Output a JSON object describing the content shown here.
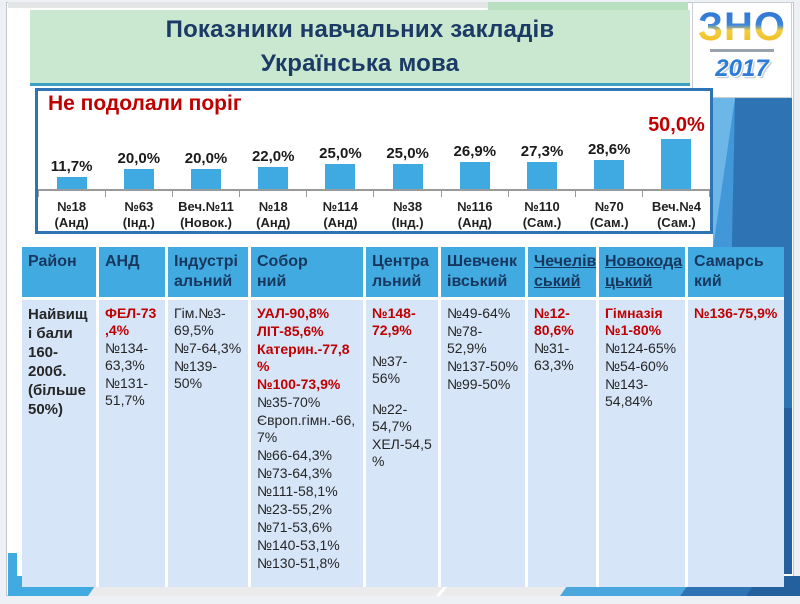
{
  "page": {
    "title_line1": "Показники навчальних закладів",
    "title_line2": "Українська мова",
    "logo_text": "ЗНО",
    "logo_year": "2017"
  },
  "chart_data": {
    "type": "bar",
    "title": "Не подолали поріг",
    "xlabel": "",
    "ylabel": "",
    "ylim": [
      0,
      55
    ],
    "grid": false,
    "legend": false,
    "bar_color": "#3FA9E1",
    "categories": [
      "№18 (Анд)",
      "№63 (Інд.)",
      "Веч.№11 (Новок.)",
      "№18 (Анд)",
      "№114 (Анд)",
      "№38 (Інд.)",
      "№116 (Анд)",
      "№110 (Сам.)",
      "№70 (Сам.)",
      "Веч.№4 (Сам.)"
    ],
    "category_lines": [
      [
        "№18",
        "(Анд)"
      ],
      [
        "№63",
        "(Інд.)"
      ],
      [
        "Веч.№11",
        "(Новок.)"
      ],
      [
        "№18",
        "(Анд)"
      ],
      [
        "№114",
        "(Анд)"
      ],
      [
        "№38",
        "(Інд.)"
      ],
      [
        "№116",
        "(Анд)"
      ],
      [
        "№110",
        "(Сам.)"
      ],
      [
        "№70",
        "(Сам.)"
      ],
      [
        "Веч.№4",
        "(Сам.)"
      ]
    ],
    "values": [
      11.7,
      20.0,
      20.0,
      22.0,
      25.0,
      25.0,
      26.9,
      27.3,
      28.6,
      50.0
    ],
    "value_labels": [
      "11,7%",
      "20,0%",
      "20,0%",
      "22,0%",
      "25,0%",
      "25,0%",
      "26,9%",
      "27,3%",
      "28,6%",
      "50,0%"
    ],
    "highlight_index": 9,
    "highlight_color": "#C00000"
  },
  "table": {
    "columns": [
      {
        "label": "Район",
        "lines": [
          "Район"
        ],
        "underlined": false
      },
      {
        "label": "АНД",
        "lines": [
          "АНД"
        ],
        "underlined": false
      },
      {
        "label": "Індустріальний",
        "lines": [
          "Індустрі",
          "альний"
        ],
        "underlined": false
      },
      {
        "label": "Соборний",
        "lines": [
          "Собор",
          "ний"
        ],
        "underlined": false
      },
      {
        "label": "Центральний",
        "lines": [
          "Центра",
          "льний"
        ],
        "underlined": false
      },
      {
        "label": "Шевченківський",
        "lines": [
          "Шевченк",
          "івський"
        ],
        "underlined": false
      },
      {
        "label": "Чечелівський",
        "lines": [
          "Чечелів",
          "ський"
        ],
        "underlined": true
      },
      {
        "label": "Новокодацький",
        "lines": [
          "Новокода",
          "цький"
        ],
        "underlined": true
      },
      {
        "label": "Самарський",
        "lines": [
          "Самарсь",
          "кий"
        ],
        "underlined": false
      }
    ],
    "row_label": "Найвищі бали 160-200б. (більше 50%)",
    "cells": [
      [
        {
          "text": "ФЕЛ-73,4%",
          "red": true
        },
        {
          "text": "№134-63,3%",
          "red": false
        },
        {
          "text": "№131-51,7%",
          "red": false
        }
      ],
      [
        {
          "text": "Гім.№3-69,5%",
          "red": false
        },
        {
          "text": "№7-64,3%",
          "red": false
        },
        {
          "text": "№139-50%",
          "red": false
        }
      ],
      [
        {
          "text": "УАЛ-90,8%",
          "red": true
        },
        {
          "text": "ЛІТ-85,6%",
          "red": true
        },
        {
          "text": "Катерин.-77,8%",
          "red": true
        },
        {
          "text": "№100-73,9%",
          "red": true
        },
        {
          "text": "№35-70%",
          "red": false
        },
        {
          "text": "Європ.гімн.-66,7%",
          "red": false
        },
        {
          "text": "№66-64,3%",
          "red": false
        },
        {
          "text": "№73-64,3%",
          "red": false
        },
        {
          "text": "№111-58,1%",
          "red": false
        },
        {
          "text": "№23-55,2%",
          "red": false
        },
        {
          "text": "№71-53,6%",
          "red": false
        },
        {
          "text": "№140-53,1%",
          "red": false
        },
        {
          "text": "№130-51,8%",
          "red": false
        }
      ],
      [
        {
          "text": "№148-72,9%",
          "red": true,
          "gap": true
        },
        {
          "text": "№37-56%",
          "red": false,
          "gap": true
        },
        {
          "text": "№22-54,7%",
          "red": false
        },
        {
          "text": "ХЕЛ-54,5%",
          "red": false
        }
      ],
      [
        {
          "text": "№49-64%",
          "red": false
        },
        {
          "text": "№78-52,9%",
          "red": false
        },
        {
          "text": "№137-50%",
          "red": false
        },
        {
          "text": "№99-50%",
          "red": false
        }
      ],
      [
        {
          "text": "№12-80,6%",
          "red": true
        },
        {
          "text": "№31-63,3%",
          "red": false
        }
      ],
      [
        {
          "text": "Гімназія №1-80%",
          "red": true
        },
        {
          "text": "№124-65%",
          "red": false
        },
        {
          "text": "№54-60%",
          "red": false
        },
        {
          "text": "№143-54,84%",
          "red": false
        }
      ],
      [
        {
          "text": "№136-75,9%",
          "red": true
        }
      ]
    ]
  },
  "colors": {
    "header_blue": "#41ABE1",
    "cell_blue": "#D6E6F8",
    "red": "#C00000",
    "navy": "#17375E",
    "banner_green": "#C9E8CF",
    "chart_border": "#2E74B5",
    "band_blue": "#4297D8"
  }
}
